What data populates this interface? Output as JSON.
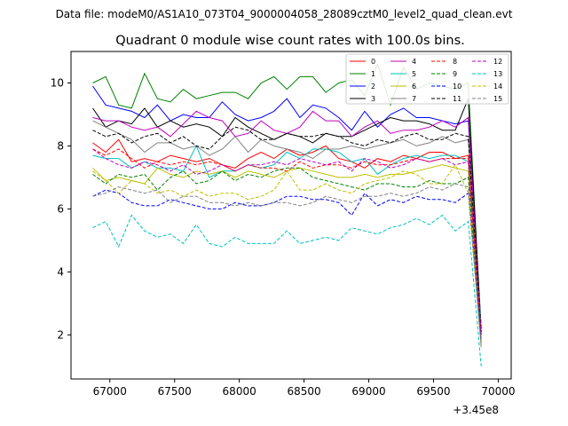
{
  "chart_data": {
    "type": "line",
    "suptitle": "Data file: modeM0/AS1A10_073T04_9000004058_28089cztM0_level2_quad_clean.evt",
    "title": "Quadrant 0 module wise count rates with 100.0s bins.",
    "xlabel": "",
    "ylabel": "",
    "x_offset_label": "+3.45e8",
    "xlim": [
      66700,
      70100
    ],
    "ylim": [
      0.6,
      11.0
    ],
    "x_ticks": [
      67000,
      67500,
      68000,
      68500,
      69000,
      69500,
      70000
    ],
    "y_ticks": [
      2,
      4,
      6,
      8,
      10
    ],
    "grid": false,
    "legend": {
      "placement": "top-right",
      "columns": 4
    },
    "x": [
      66868,
      66968,
      67068,
      67168,
      67268,
      67368,
      67468,
      67568,
      67668,
      67768,
      67868,
      67968,
      68068,
      68168,
      68268,
      68368,
      68468,
      68568,
      68668,
      68768,
      68868,
      68968,
      69068,
      69168,
      69268,
      69368,
      69468,
      69568,
      69668,
      69768,
      69868
    ],
    "series": [
      {
        "name": "0",
        "color": "#ff0000",
        "dash": false,
        "values": [
          8.1,
          7.8,
          8.2,
          7.5,
          7.6,
          7.5,
          7.7,
          7.6,
          7.5,
          7.6,
          7.4,
          7.3,
          7.6,
          7.8,
          7.6,
          7.9,
          7.7,
          7.8,
          8.0,
          7.6,
          7.5,
          7.3,
          7.6,
          7.5,
          7.7,
          7.6,
          7.8,
          7.8,
          7.6,
          7.7,
          2.2
        ]
      },
      {
        "name": "1",
        "color": "#008000",
        "dash": false,
        "values": [
          10.0,
          10.2,
          9.3,
          9.2,
          10.3,
          9.5,
          9.4,
          9.8,
          9.5,
          9.6,
          9.7,
          9.7,
          9.5,
          10.0,
          10.2,
          9.8,
          10.2,
          10.2,
          9.7,
          10.0,
          10.1,
          9.6,
          10.6,
          9.3,
          10.5,
          9.8,
          10.0,
          9.9,
          9.8,
          10.0,
          2.0
        ]
      },
      {
        "name": "2",
        "color": "#0000ff",
        "dash": false,
        "values": [
          9.9,
          9.3,
          9.2,
          9.1,
          8.9,
          9.3,
          8.8,
          9.0,
          8.9,
          8.9,
          9.4,
          9.0,
          8.8,
          8.9,
          9.1,
          9.5,
          8.9,
          9.3,
          9.2,
          8.9,
          8.5,
          9.1,
          8.6,
          9.0,
          9.2,
          8.9,
          8.9,
          8.8,
          8.7,
          8.8,
          2.1
        ]
      },
      {
        "name": "3",
        "color": "#000000",
        "dash": false,
        "values": [
          9.2,
          8.6,
          8.8,
          8.7,
          9.2,
          8.6,
          8.8,
          8.6,
          8.7,
          8.6,
          8.3,
          8.9,
          8.6,
          8.4,
          8.2,
          8.4,
          8.3,
          8.1,
          8.4,
          8.3,
          8.3,
          8.5,
          8.7,
          8.9,
          8.8,
          8.8,
          8.7,
          8.5,
          8.5,
          9.5,
          2.2
        ]
      },
      {
        "name": "4",
        "color": "#bf00bf",
        "dash": false,
        "values": [
          8.9,
          8.8,
          8.8,
          8.6,
          8.5,
          8.6,
          8.3,
          8.7,
          9.1,
          8.9,
          8.8,
          8.3,
          8.4,
          8.8,
          8.5,
          8.4,
          8.6,
          9.1,
          8.8,
          8.8,
          8.3,
          8.6,
          8.8,
          8.4,
          8.5,
          8.5,
          8.6,
          8.8,
          8.6,
          8.9,
          2.0
        ]
      },
      {
        "name": "5",
        "color": "#00bfbf",
        "dash": false,
        "values": [
          7.7,
          7.6,
          7.6,
          7.3,
          7.5,
          7.3,
          7.3,
          7.2,
          8.0,
          7.0,
          7.2,
          7.2,
          7.4,
          7.3,
          7.4,
          7.8,
          7.6,
          7.9,
          7.9,
          7.8,
          7.5,
          7.6,
          7.1,
          7.4,
          7.6,
          7.7,
          7.6,
          7.7,
          7.7,
          7.5,
          2.3
        ]
      },
      {
        "name": "6",
        "color": "#bfbf00",
        "dash": false,
        "values": [
          7.3,
          6.9,
          7.0,
          6.9,
          6.8,
          7.3,
          7.1,
          7.0,
          7.2,
          7.1,
          7.2,
          7.0,
          7.2,
          7.1,
          7.0,
          7.2,
          7.3,
          7.2,
          7.1,
          7.0,
          7.0,
          7.1,
          7.0,
          7.1,
          7.1,
          7.2,
          7.3,
          7.4,
          7.3,
          7.2,
          1.9
        ]
      },
      {
        "name": "7",
        "color": "#808080",
        "dash": false,
        "values": [
          8.8,
          8.6,
          8.4,
          8.2,
          7.8,
          8.1,
          8.1,
          7.9,
          8.0,
          7.7,
          7.9,
          8.3,
          7.8,
          8.2,
          8.0,
          7.9,
          7.8,
          7.6,
          7.9,
          7.9,
          8.0,
          7.9,
          8.0,
          8.1,
          8.2,
          8.0,
          8.1,
          8.3,
          8.1,
          8.2,
          2.1
        ]
      },
      {
        "name": "8",
        "color": "#ff0000",
        "dash": true,
        "values": [
          7.9,
          7.7,
          7.9,
          7.6,
          7.3,
          7.5,
          7.4,
          7.5,
          7.4,
          7.5,
          7.4,
          7.2,
          7.4,
          7.3,
          7.3,
          7.2,
          7.5,
          7.3,
          7.4,
          7.4,
          7.3,
          7.5,
          7.4,
          7.4,
          7.5,
          7.6,
          7.5,
          7.6,
          7.6,
          7.6,
          2.0
        ]
      },
      {
        "name": "9",
        "color": "#008000",
        "dash": true,
        "values": [
          7.1,
          6.8,
          7.1,
          7.0,
          7.1,
          6.6,
          7.0,
          7.2,
          6.8,
          6.9,
          7.2,
          6.9,
          7.1,
          7.0,
          7.2,
          7.3,
          7.3,
          7.0,
          6.9,
          6.8,
          6.7,
          6.6,
          6.8,
          6.8,
          6.7,
          6.7,
          6.9,
          6.8,
          6.8,
          7.0,
          1.8
        ]
      },
      {
        "name": "10",
        "color": "#0000ff",
        "dash": true,
        "values": [
          6.4,
          6.6,
          6.5,
          6.2,
          6.1,
          6.1,
          6.3,
          6.2,
          6.1,
          6.0,
          6.0,
          6.2,
          6.1,
          6.1,
          6.2,
          6.4,
          6.4,
          6.3,
          6.3,
          6.2,
          5.8,
          6.5,
          6.1,
          6.3,
          6.2,
          6.4,
          6.3,
          6.3,
          6.2,
          6.5,
          1.7
        ]
      },
      {
        "name": "11",
        "color": "#000000",
        "dash": true,
        "values": [
          8.5,
          8.3,
          8.4,
          8.1,
          8.3,
          8.4,
          8.1,
          8.3,
          8.0,
          7.9,
          8.3,
          8.6,
          8.5,
          8.2,
          8.2,
          8.4,
          8.3,
          8.3,
          8.4,
          8.3,
          8.1,
          8.0,
          8.2,
          8.1,
          8.3,
          8.4,
          8.2,
          8.2,
          8.4,
          8.3,
          2.1
        ]
      },
      {
        "name": "12",
        "color": "#bf00bf",
        "dash": true,
        "values": [
          7.9,
          7.6,
          7.4,
          7.3,
          7.5,
          7.4,
          7.2,
          7.4,
          7.1,
          7.2,
          7.4,
          7.2,
          7.4,
          7.4,
          7.5,
          7.4,
          7.6,
          7.5,
          7.4,
          7.5,
          7.2,
          7.6,
          7.5,
          7.3,
          7.4,
          7.6,
          7.5,
          7.6,
          7.4,
          7.5,
          2.0
        ]
      },
      {
        "name": "13",
        "color": "#00bfbf",
        "dash": true,
        "values": [
          5.4,
          5.6,
          4.8,
          5.8,
          5.3,
          5.1,
          5.2,
          4.9,
          5.5,
          4.9,
          4.8,
          5.1,
          4.9,
          4.9,
          4.9,
          5.3,
          4.9,
          5.0,
          5.1,
          5.0,
          5.4,
          5.3,
          5.2,
          5.4,
          5.5,
          5.7,
          5.5,
          5.8,
          5.3,
          5.6,
          1.0
        ]
      },
      {
        "name": "14",
        "color": "#bfbf00",
        "dash": true,
        "values": [
          7.2,
          6.9,
          6.5,
          6.9,
          6.8,
          6.5,
          6.6,
          6.4,
          6.6,
          6.4,
          6.5,
          6.5,
          6.3,
          6.4,
          6.6,
          7.2,
          6.6,
          6.6,
          6.8,
          6.6,
          6.5,
          6.8,
          6.9,
          7.0,
          7.2,
          7.1,
          6.8,
          6.8,
          7.4,
          6.5,
          1.6
        ]
      },
      {
        "name": "15",
        "color": "#808080",
        "dash": true,
        "values": [
          6.4,
          6.5,
          6.7,
          6.6,
          6.5,
          6.6,
          6.2,
          6.4,
          6.4,
          6.2,
          6.2,
          6.1,
          6.2,
          6.1,
          6.2,
          6.2,
          6.1,
          6.2,
          6.4,
          6.3,
          6.2,
          6.4,
          6.4,
          6.5,
          6.4,
          6.5,
          6.7,
          6.6,
          6.8,
          6.7,
          1.6
        ]
      }
    ]
  }
}
